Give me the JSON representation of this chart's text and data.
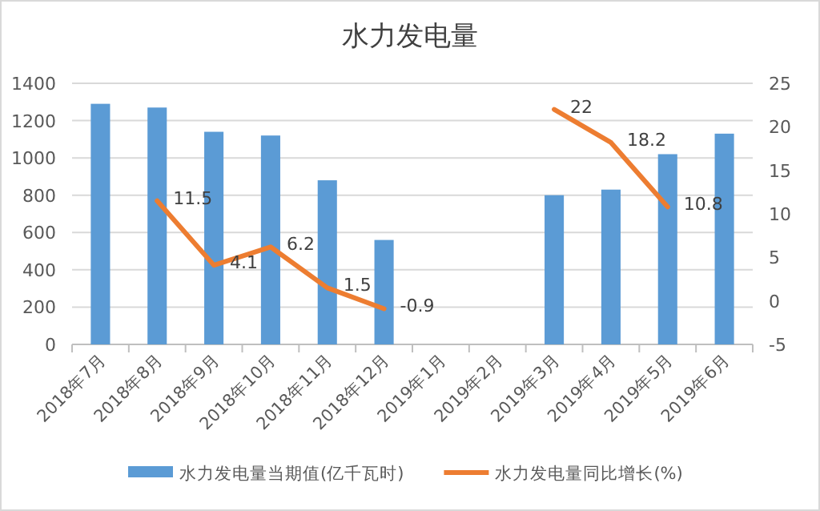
{
  "chart_data": {
    "type": "bar",
    "title": "水力发电量",
    "categories": [
      "2018年7月",
      "2018年8月",
      "2018年9月",
      "2018年10月",
      "2018年11月",
      "2018年12月",
      "2019年1月",
      "2019年2月",
      "2019年3月",
      "2019年4月",
      "2019年5月",
      "2019年6月"
    ],
    "series": [
      {
        "name": "水力发电量当期值(亿千瓦时)",
        "color": "#5b9bd5",
        "values": [
          1290,
          1270,
          1140,
          1120,
          880,
          560,
          null,
          null,
          800,
          830,
          1020,
          1130
        ]
      },
      {
        "name": "水力发电量同比增长(%)",
        "type": "line",
        "axis": "y2",
        "color": "#ed7d31",
        "values": [
          null,
          11.5,
          4.1,
          6.2,
          1.5,
          -0.9,
          null,
          null,
          22,
          18.2,
          10.8,
          null
        ],
        "value_labels": [
          null,
          "11.5",
          "4.1",
          "6.2",
          "1.5",
          "-0.9",
          null,
          null,
          "22",
          "18.2",
          "10.8",
          null
        ]
      }
    ],
    "ylim": [
      0,
      1400
    ],
    "yticks": [
      0,
      200,
      400,
      600,
      800,
      1000,
      1200,
      1400
    ],
    "y2lim": [
      -5,
      25
    ],
    "y2ticks": [
      -5,
      0,
      5,
      10,
      15,
      20,
      25
    ],
    "grid": "y",
    "legend": "bottom"
  }
}
